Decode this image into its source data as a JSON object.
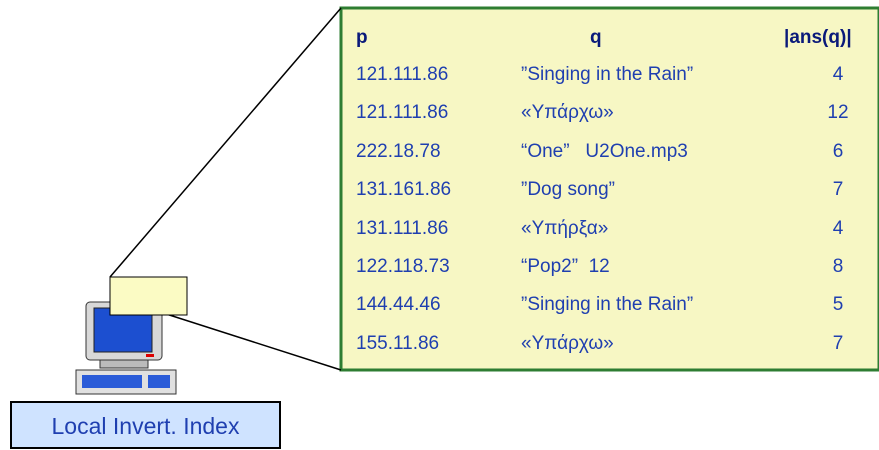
{
  "header": {
    "p": "p",
    "q": "q",
    "count": "|ans(q)|"
  },
  "rows": [
    [
      "121.111.86",
      "”Singing in the Rain”",
      "4"
    ],
    [
      "121.111.86",
      "«Υπάρχω»",
      "12"
    ],
    [
      "222.18.78",
      "“One”   U2One.mp3",
      "6"
    ],
    [
      "131.161.86",
      "”Dog song”",
      "7"
    ],
    [
      "131.111.86",
      "«Υπήρξα»",
      "4"
    ],
    [
      "122.118.73",
      "“Pop2”  12",
      "8"
    ],
    [
      "144.44.46",
      "”Singing in the Rain”",
      "5"
    ],
    [
      "155.11.86",
      "«Υπάρχω»",
      "7"
    ]
  ],
  "label": "Local Invert. Index"
}
